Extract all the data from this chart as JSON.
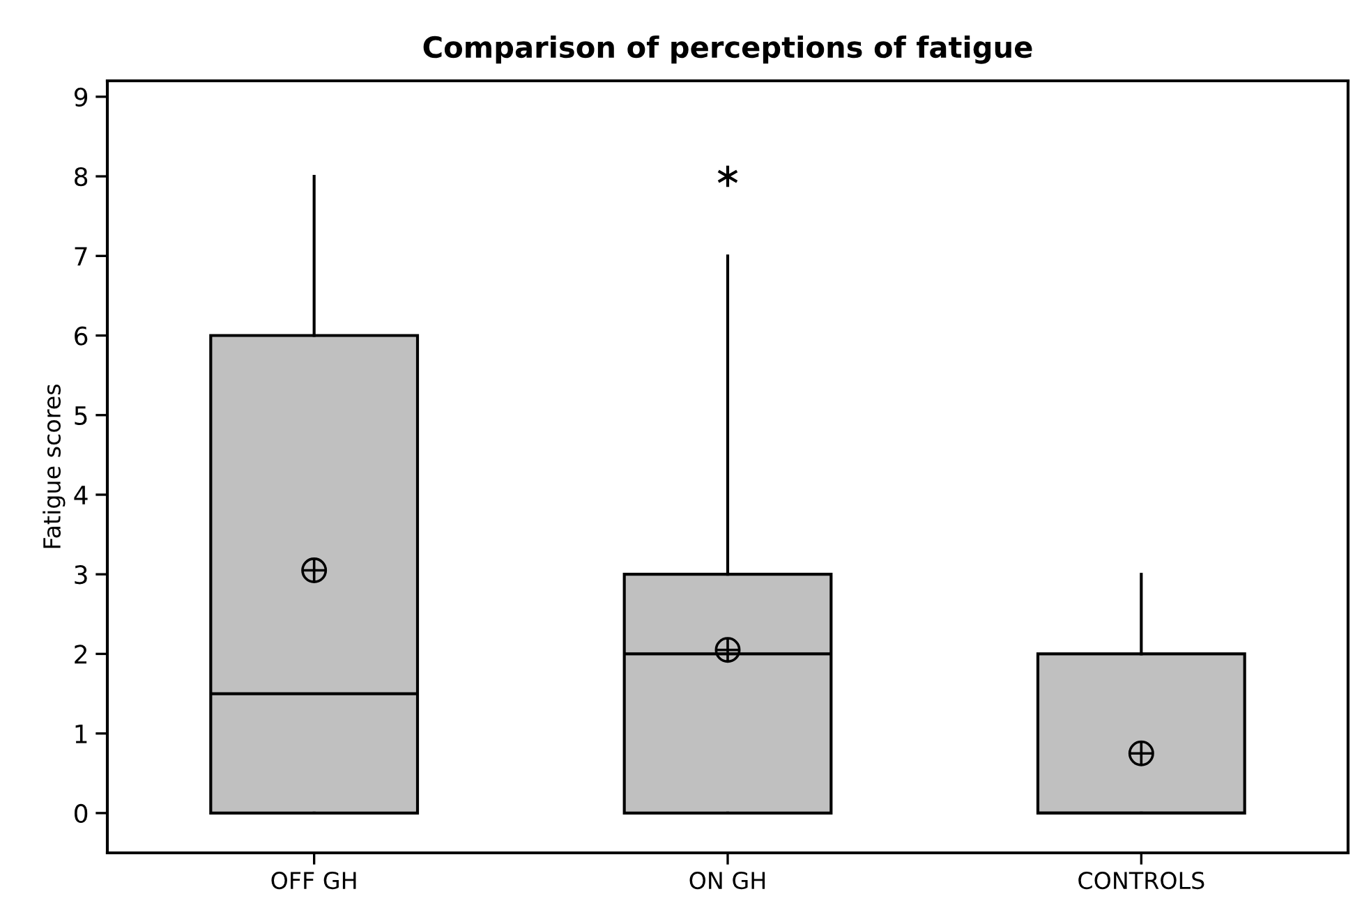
{
  "chart_data": {
    "type": "box",
    "title": "Comparison of perceptions of fatigue",
    "ylabel": "Fatigue scores",
    "categories": [
      "OFF GH",
      "ON GH",
      "CONTROLS"
    ],
    "boxes": [
      {
        "low": 0,
        "q1": 0,
        "median": 1.5,
        "q3": 6,
        "high": 8,
        "mean": 3.05
      },
      {
        "low": 0,
        "q1": 0,
        "median": 2,
        "q3": 3,
        "high": 7,
        "mean": 2.05,
        "outliers": [
          8
        ]
      },
      {
        "low": 0,
        "q1": 0,
        "median": 0,
        "q3": 2,
        "high": 3,
        "mean": 0.75
      }
    ],
    "color": "#c0c0c0",
    "ylim": [
      -0.5,
      9.2
    ],
    "yticks": [
      0,
      1,
      2,
      3,
      4,
      5,
      6,
      7,
      8,
      9
    ],
    "grid": false,
    "legend": false
  }
}
